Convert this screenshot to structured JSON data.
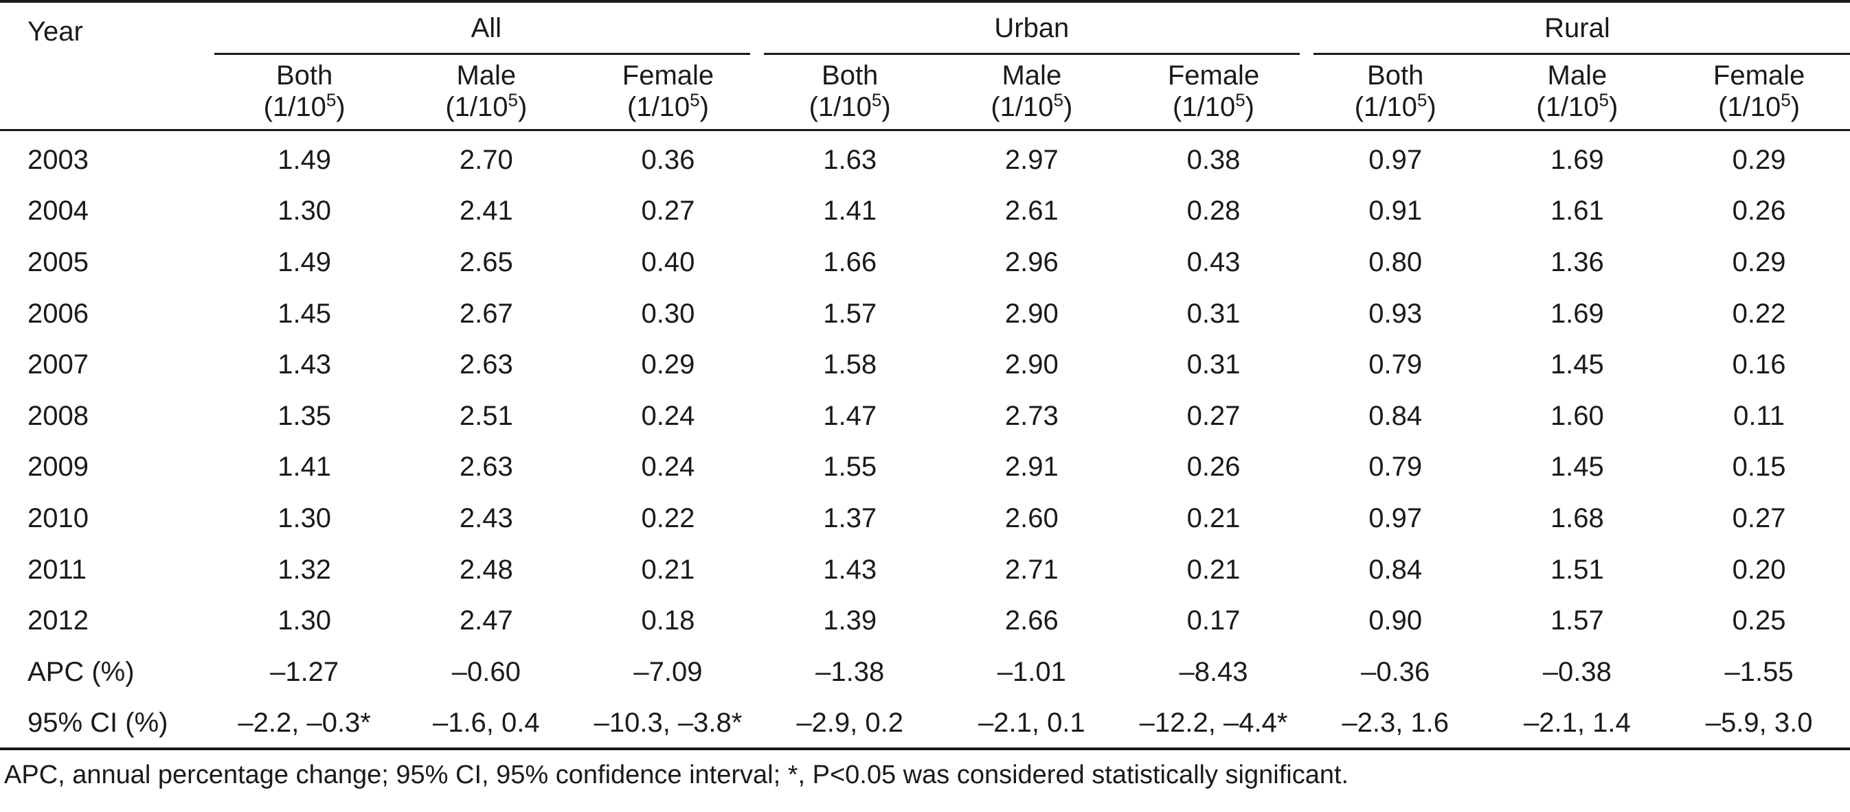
{
  "table": {
    "year_header": "Year",
    "groups": [
      "All",
      "Urban",
      "Rural"
    ],
    "subheaders": [
      {
        "name": "Both",
        "unit": "(1/10",
        "exp": "5",
        "close": ")"
      },
      {
        "name": "Male",
        "unit": "(1/10",
        "exp": "5",
        "close": ")"
      },
      {
        "name": "Female",
        "unit": "(1/10",
        "exp": "5",
        "close": ")"
      }
    ],
    "rows": [
      {
        "label": "2003",
        "values": [
          "1.49",
          "2.70",
          "0.36",
          "1.63",
          "2.97",
          "0.38",
          "0.97",
          "1.69",
          "0.29"
        ]
      },
      {
        "label": "2004",
        "values": [
          "1.30",
          "2.41",
          "0.27",
          "1.41",
          "2.61",
          "0.28",
          "0.91",
          "1.61",
          "0.26"
        ]
      },
      {
        "label": "2005",
        "values": [
          "1.49",
          "2.65",
          "0.40",
          "1.66",
          "2.96",
          "0.43",
          "0.80",
          "1.36",
          "0.29"
        ]
      },
      {
        "label": "2006",
        "values": [
          "1.45",
          "2.67",
          "0.30",
          "1.57",
          "2.90",
          "0.31",
          "0.93",
          "1.69",
          "0.22"
        ]
      },
      {
        "label": "2007",
        "values": [
          "1.43",
          "2.63",
          "0.29",
          "1.58",
          "2.90",
          "0.31",
          "0.79",
          "1.45",
          "0.16"
        ]
      },
      {
        "label": "2008",
        "values": [
          "1.35",
          "2.51",
          "0.24",
          "1.47",
          "2.73",
          "0.27",
          "0.84",
          "1.60",
          "0.11"
        ]
      },
      {
        "label": "2009",
        "values": [
          "1.41",
          "2.63",
          "0.24",
          "1.55",
          "2.91",
          "0.26",
          "0.79",
          "1.45",
          "0.15"
        ]
      },
      {
        "label": "2010",
        "values": [
          "1.30",
          "2.43",
          "0.22",
          "1.37",
          "2.60",
          "0.21",
          "0.97",
          "1.68",
          "0.27"
        ]
      },
      {
        "label": "2011",
        "values": [
          "1.32",
          "2.48",
          "0.21",
          "1.43",
          "2.71",
          "0.21",
          "0.84",
          "1.51",
          "0.20"
        ]
      },
      {
        "label": "2012",
        "values": [
          "1.30",
          "2.47",
          "0.18",
          "1.39",
          "2.66",
          "0.17",
          "0.90",
          "1.57",
          "0.25"
        ]
      },
      {
        "label": "APC (%)",
        "values": [
          "–1.27",
          "–0.60",
          "–7.09",
          "–1.38",
          "–1.01",
          "–8.43",
          "–0.36",
          "–0.38",
          "–1.55"
        ]
      },
      {
        "label": "95% CI (%)",
        "values": [
          "–2.2, –0.3*",
          "–1.6, 0.4",
          "–10.3, –3.8*",
          "–2.9, 0.2",
          "–2.1, 0.1",
          "–12.2, –4.4*",
          "–2.3, 1.6",
          "–2.1, 1.4",
          "–5.9, 3.0"
        ]
      }
    ]
  },
  "footnote": "APC, annual percentage change; 95% CI, 95% confidence interval; *, P<0.05 was considered statistically significant."
}
